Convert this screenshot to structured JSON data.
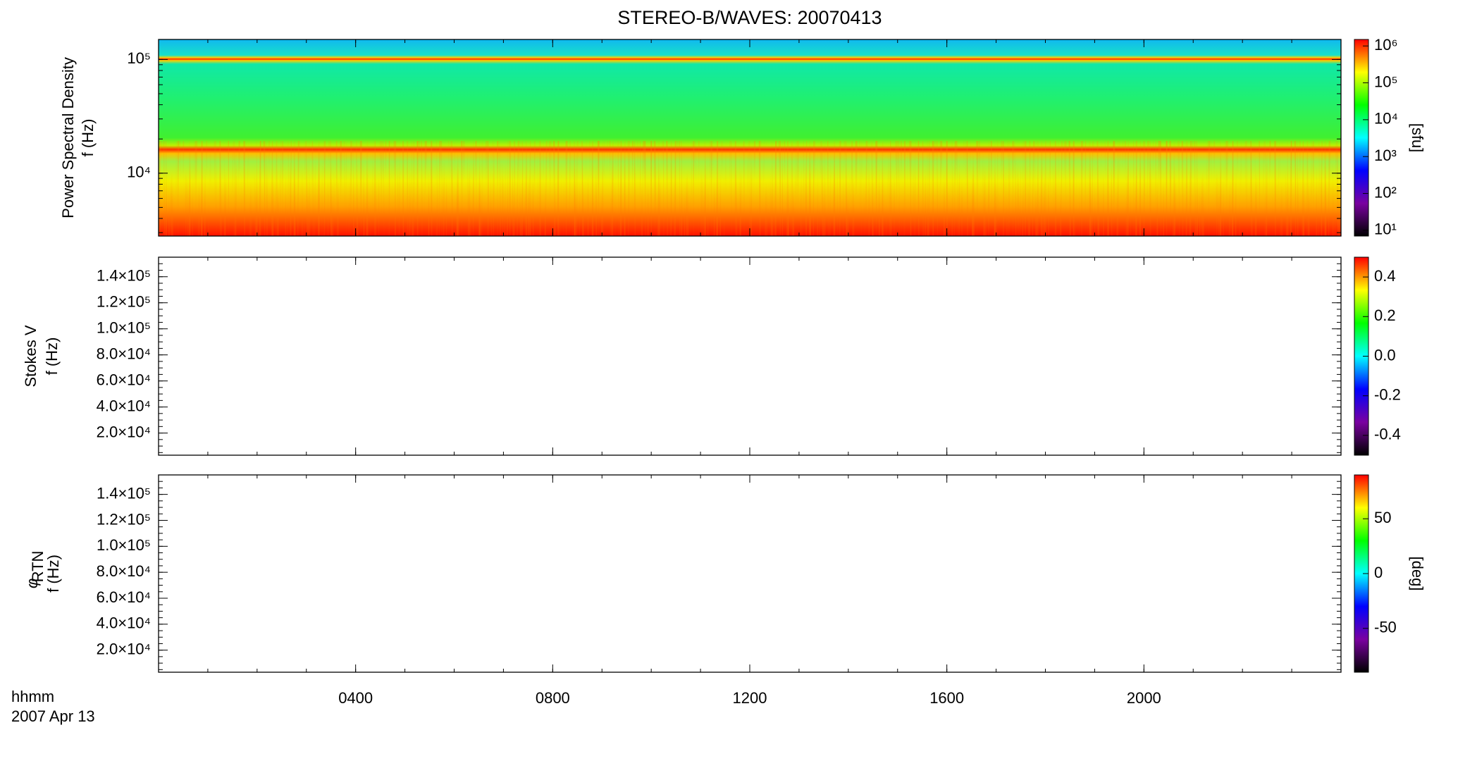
{
  "chart_data": [
    {
      "type": "spectrogram",
      "title": "STEREO-B/WAVES: 20070413",
      "ylabel": [
        "Power Spectral Density",
        "f (Hz)"
      ],
      "xlim": [
        0,
        24
      ],
      "ylim": [
        2800,
        150000
      ],
      "ylog": true,
      "yticks": [
        {
          "value": 10000,
          "label": "10⁴"
        },
        {
          "value": 100000,
          "label": "10⁵"
        }
      ],
      "zlim": [
        7,
        1500000
      ],
      "zlog": true,
      "zticks": [
        {
          "value": 10,
          "label": "10¹"
        },
        {
          "value": 100,
          "label": "10²"
        },
        {
          "value": 1000,
          "label": "10³"
        },
        {
          "value": 10000,
          "label": "10⁴"
        },
        {
          "value": 100000,
          "label": "10⁵"
        },
        {
          "value": 1000000,
          "label": "10⁶"
        }
      ],
      "zlabel": "[sfu]",
      "colormap": [
        "#000000",
        "#7a00a0",
        "#0000ff",
        "#00ffff",
        "#00ff00",
        "#ffff00",
        "#ff0000"
      ]
    },
    {
      "type": "spectrogram",
      "ylabel": [
        "Stokes V",
        "f (Hz)"
      ],
      "xlim": [
        0,
        24
      ],
      "ylim": [
        3000,
        155000
      ],
      "yticks": [
        {
          "value": 20000,
          "label": "2.0×10⁴"
        },
        {
          "value": 40000,
          "label": "4.0×10⁴"
        },
        {
          "value": 60000,
          "label": "6.0×10⁴"
        },
        {
          "value": 80000,
          "label": "8.0×10⁴"
        },
        {
          "value": 100000,
          "label": "1.0×10⁵"
        },
        {
          "value": 120000,
          "label": "1.2×10⁵"
        },
        {
          "value": 140000,
          "label": "1.4×10⁵"
        }
      ],
      "zlim": [
        -0.5,
        0.5
      ],
      "zticks": [
        -0.4,
        -0.2,
        {
          "value": 0,
          "label": "0.0"
        },
        0.2,
        0.4
      ],
      "colormap": [
        "#000000",
        "#7a00a0",
        "#0000ff",
        "#00ffff",
        "#00ff00",
        "#ffff00",
        "#ff0000"
      ]
    },
    {
      "type": "spectrogram",
      "ylabel_symbol": "φ",
      "ylabel_subscript": "RTN",
      "ylabel": [
        "f (Hz)"
      ],
      "xlim": [
        0,
        24
      ],
      "ylim": [
        3000,
        155000
      ],
      "yticks": [
        {
          "value": 20000,
          "label": "2.0×10⁴"
        },
        {
          "value": 40000,
          "label": "4.0×10⁴"
        },
        {
          "value": 60000,
          "label": "6.0×10⁴"
        },
        {
          "value": 80000,
          "label": "8.0×10⁴"
        },
        {
          "value": 100000,
          "label": "1.0×10⁵"
        },
        {
          "value": 120000,
          "label": "1.2×10⁵"
        },
        {
          "value": 140000,
          "label": "1.4×10⁵"
        }
      ],
      "xticks": [
        {
          "value": 4,
          "label": "0400"
        },
        {
          "value": 8,
          "label": "0800"
        },
        {
          "value": 12,
          "label": "1200"
        },
        {
          "value": 16,
          "label": "1600"
        },
        {
          "value": 20,
          "label": "2000"
        }
      ],
      "x_label": "hhmm",
      "date_label": "2007 Apr 13",
      "zlim": [
        -90,
        90
      ],
      "zticks": [
        -50,
        0,
        50
      ],
      "zlabel": "[deg]",
      "colormap": [
        "#000000",
        "#7a00a0",
        "#0000ff",
        "#00ffff",
        "#00ff00",
        "#ffff00",
        "#ff0000"
      ]
    }
  ]
}
